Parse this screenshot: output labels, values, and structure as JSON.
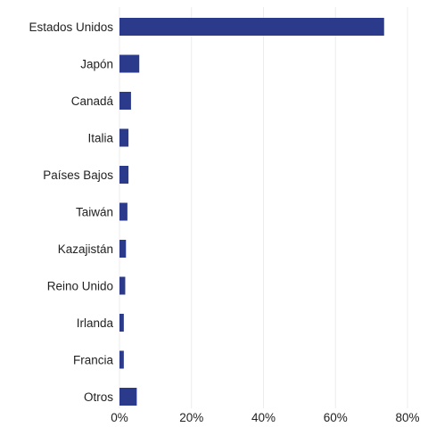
{
  "chart_data": {
    "type": "bar",
    "orientation": "horizontal",
    "categories": [
      "Estados Unidos",
      "Japón",
      "Canadá",
      "Italia",
      "Países Bajos",
      "Taiwán",
      "Kazajistán",
      "Reino Unido",
      "Irlanda",
      "Francia",
      "Otros"
    ],
    "values": [
      73.5,
      5.5,
      3.2,
      2.5,
      2.5,
      2.2,
      1.8,
      1.6,
      1.2,
      1.2,
      4.8
    ],
    "value_unit": "%",
    "xlim": [
      0,
      80
    ],
    "xticks": [
      0,
      20,
      40,
      60,
      80
    ],
    "xtick_labels": [
      "0%",
      "20%",
      "40%",
      "60%",
      "80%"
    ],
    "title": "",
    "xlabel": "",
    "ylabel": "",
    "grid": "vertical",
    "legend": "none",
    "bar_color": "#2b3a8a"
  }
}
